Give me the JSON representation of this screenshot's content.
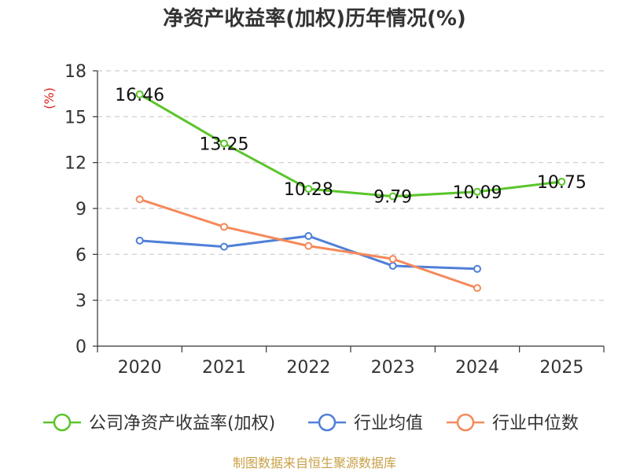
{
  "chart_data": {
    "type": "line",
    "title": "净资产收益率(加权)历年情况(%)",
    "ylabel": "(%)",
    "xlabel": "",
    "categories": [
      "2020",
      "2021",
      "2022",
      "2023",
      "2024",
      "2025"
    ],
    "ylim": [
      0,
      18
    ],
    "yticks": [
      0,
      3,
      6,
      9,
      12,
      15,
      18
    ],
    "grid": true,
    "legend_position": "bottom",
    "series": [
      {
        "name": "公司净资产收益率(加权)",
        "color": "#5ac52b",
        "values": [
          16.46,
          13.25,
          10.28,
          9.79,
          10.09,
          10.75
        ],
        "labels": [
          "16.46",
          "13.25",
          "10.28",
          "9.79",
          "10.09",
          "10.75"
        ]
      },
      {
        "name": "行业均值",
        "color": "#4f7fd8",
        "values": [
          6.9,
          6.5,
          7.2,
          5.25,
          5.05,
          null
        ]
      },
      {
        "name": "行业中位数",
        "color": "#f5895a",
        "values": [
          9.6,
          7.8,
          6.55,
          5.7,
          3.8,
          null
        ]
      }
    ],
    "source": "制图数据来自恒生聚源数据库"
  }
}
